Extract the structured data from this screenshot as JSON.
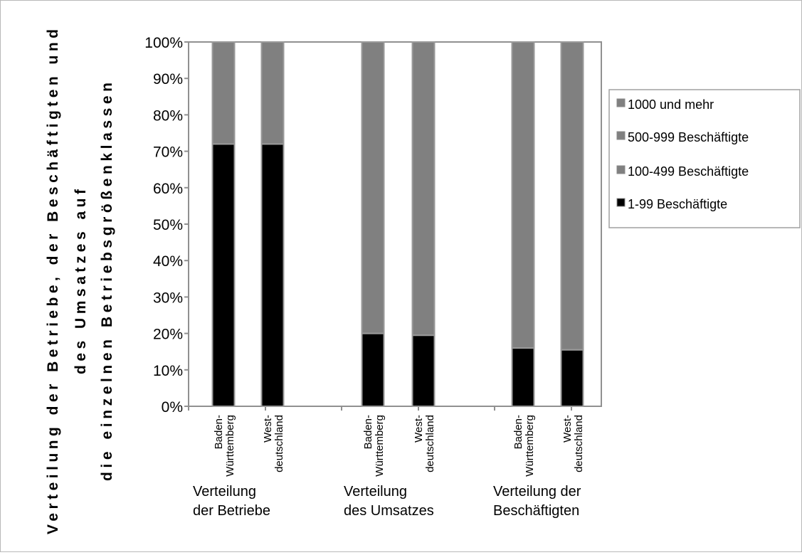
{
  "chart_data": {
    "type": "bar",
    "stacked": true,
    "ylabel_lines": [
      "Verteilung der Betriebe, der Beschäftigten und",
      "des Umsatzes auf",
      "die einzelnen Betriebsgrößenklassen"
    ],
    "ylim": [
      0,
      100
    ],
    "yticks": [
      "0%",
      "10%",
      "20%",
      "30%",
      "40%",
      "50%",
      "60%",
      "70%",
      "80%",
      "90%",
      "100%"
    ],
    "categories": [
      {
        "name_lines": [
          "Baden-",
          "Württemberg"
        ],
        "group": 0
      },
      {
        "name_lines": [
          "West-",
          "deutschland"
        ],
        "group": 0
      },
      {
        "name_lines": [
          "Baden-",
          "Württemberg"
        ],
        "group": 1
      },
      {
        "name_lines": [
          "West-",
          "deutschland"
        ],
        "group": 1
      },
      {
        "name_lines": [
          "Baden-",
          "Württemberg"
        ],
        "group": 2
      },
      {
        "name_lines": [
          "West-",
          "deutschland"
        ],
        "group": 2
      }
    ],
    "groups": [
      {
        "label_lines": [
          "Verteilung",
          "der Betriebe"
        ]
      },
      {
        "label_lines": [
          "Verteilung",
          "des Umsatzes"
        ]
      },
      {
        "label_lines": [
          "Verteilung der",
          "Beschäftigten"
        ]
      }
    ],
    "series": [
      {
        "name": "1-99 Beschäftigte",
        "color": "#000000",
        "values": [
          72,
          72,
          20,
          19.5,
          16,
          15.5
        ]
      },
      {
        "name": "100-499 Beschäftigte",
        "color": "#808080",
        "values": [
          28,
          28,
          80,
          80.5,
          84,
          84.5
        ]
      },
      {
        "name": "500-999 Beschäftigte",
        "color": "#808080",
        "values": [
          0,
          0,
          0,
          0,
          0,
          0
        ]
      },
      {
        "name": "1000 und mehr",
        "color": "#808080",
        "values": [
          0,
          0,
          0,
          0,
          0,
          0
        ]
      }
    ],
    "legend_order": [
      "1000 und mehr",
      "500-999 Beschäftigte",
      "100-499 Beschäftigte",
      "1-99 Beschäftigte"
    ],
    "legend_position": "right",
    "grid": false
  }
}
